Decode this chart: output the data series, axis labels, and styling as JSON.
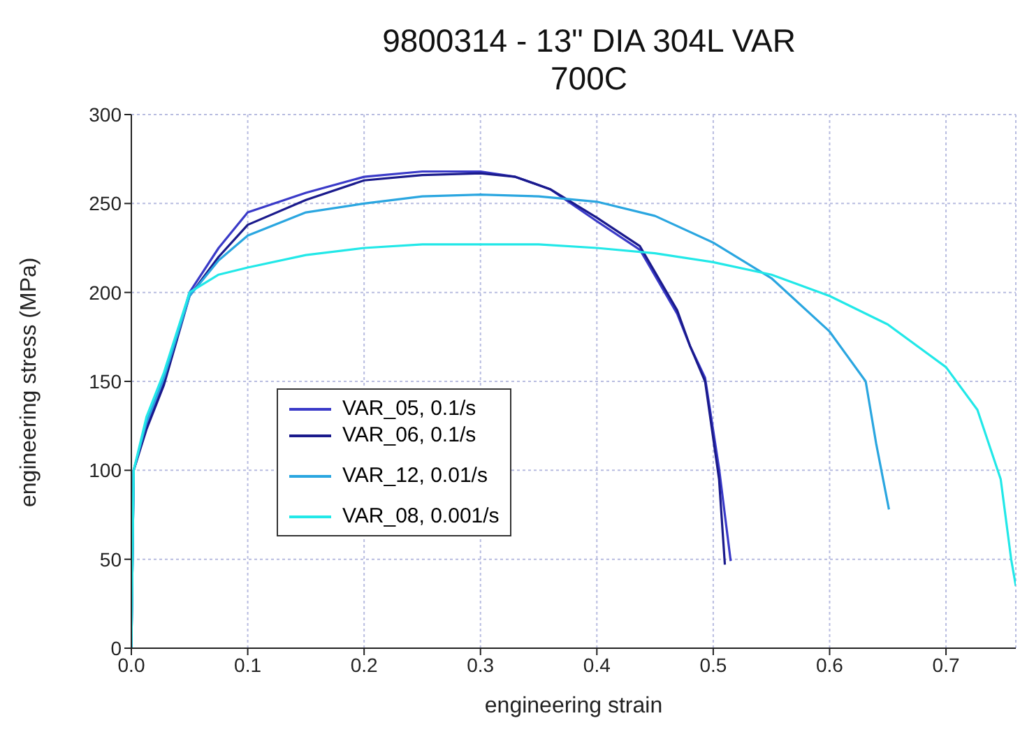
{
  "chart_data": {
    "type": "line",
    "title": "9800314 - 13\" DIA 304L VAR\n700C",
    "xlabel": "engineering strain",
    "ylabel": "engineering stress (MPa)",
    "xlim": [
      0,
      0.76
    ],
    "xticks": [
      {
        "value": 0,
        "label": "0.0"
      },
      0.1,
      0.2,
      0.3,
      0.4,
      0.5,
      0.6,
      0.7
    ],
    "ylim": [
      0,
      300
    ],
    "yticks": [
      0,
      50,
      100,
      150,
      200,
      250,
      300
    ],
    "grid": true,
    "legend": "left",
    "marker": "none",
    "line_style": "solid",
    "series": [
      {
        "name": "VAR_05, 0.1/s",
        "color": "#3a3ac8",
        "x": [
          0,
          0.002,
          0.013,
          0.028,
          0.05,
          0.075,
          0.1,
          0.15,
          0.2,
          0.25,
          0.3,
          0.33,
          0.36,
          0.4,
          0.437,
          0.469,
          0.48,
          0.493,
          0.505,
          0.515
        ],
        "values": [
          0,
          100,
          125,
          150,
          200,
          225,
          245,
          256,
          265,
          268,
          268,
          265,
          258,
          240,
          224,
          188,
          170,
          152,
          101,
          49
        ]
      },
      {
        "name": "VAR_06, 0.1/s",
        "color": "#1a1a8c",
        "x": [
          0,
          0.002,
          0.013,
          0.028,
          0.05,
          0.075,
          0.1,
          0.15,
          0.2,
          0.25,
          0.3,
          0.33,
          0.36,
          0.4,
          0.437,
          0.469,
          0.48,
          0.493,
          0.505,
          0.51
        ],
        "values": [
          0,
          100,
          123,
          148,
          198,
          220,
          238,
          252,
          263,
          266,
          267,
          265,
          258,
          242,
          226,
          190,
          170,
          150,
          95,
          47
        ]
      },
      {
        "name": "VAR_12, 0.01/s",
        "color": "#2aa6e0",
        "x": [
          0,
          0.002,
          0.013,
          0.028,
          0.05,
          0.075,
          0.1,
          0.15,
          0.2,
          0.25,
          0.3,
          0.35,
          0.4,
          0.45,
          0.5,
          0.55,
          0.6,
          0.631,
          0.64,
          0.651
        ],
        "values": [
          0,
          100,
          127,
          152,
          198,
          218,
          232,
          245,
          250,
          254,
          255,
          254,
          251,
          243,
          228,
          208,
          178,
          150,
          115,
          78
        ]
      },
      {
        "name": "VAR_08, 0.001/s",
        "color": "#22e8e8",
        "x": [
          0,
          0.002,
          0.013,
          0.028,
          0.05,
          0.075,
          0.1,
          0.15,
          0.2,
          0.25,
          0.3,
          0.35,
          0.4,
          0.45,
          0.5,
          0.55,
          0.6,
          0.65,
          0.7,
          0.727,
          0.747,
          0.756,
          0.76
        ],
        "values": [
          0,
          100,
          130,
          155,
          200,
          210,
          214,
          221,
          225,
          227,
          227,
          227,
          225,
          222,
          217,
          210,
          198,
          182,
          158,
          134,
          95,
          50,
          35
        ]
      }
    ]
  }
}
